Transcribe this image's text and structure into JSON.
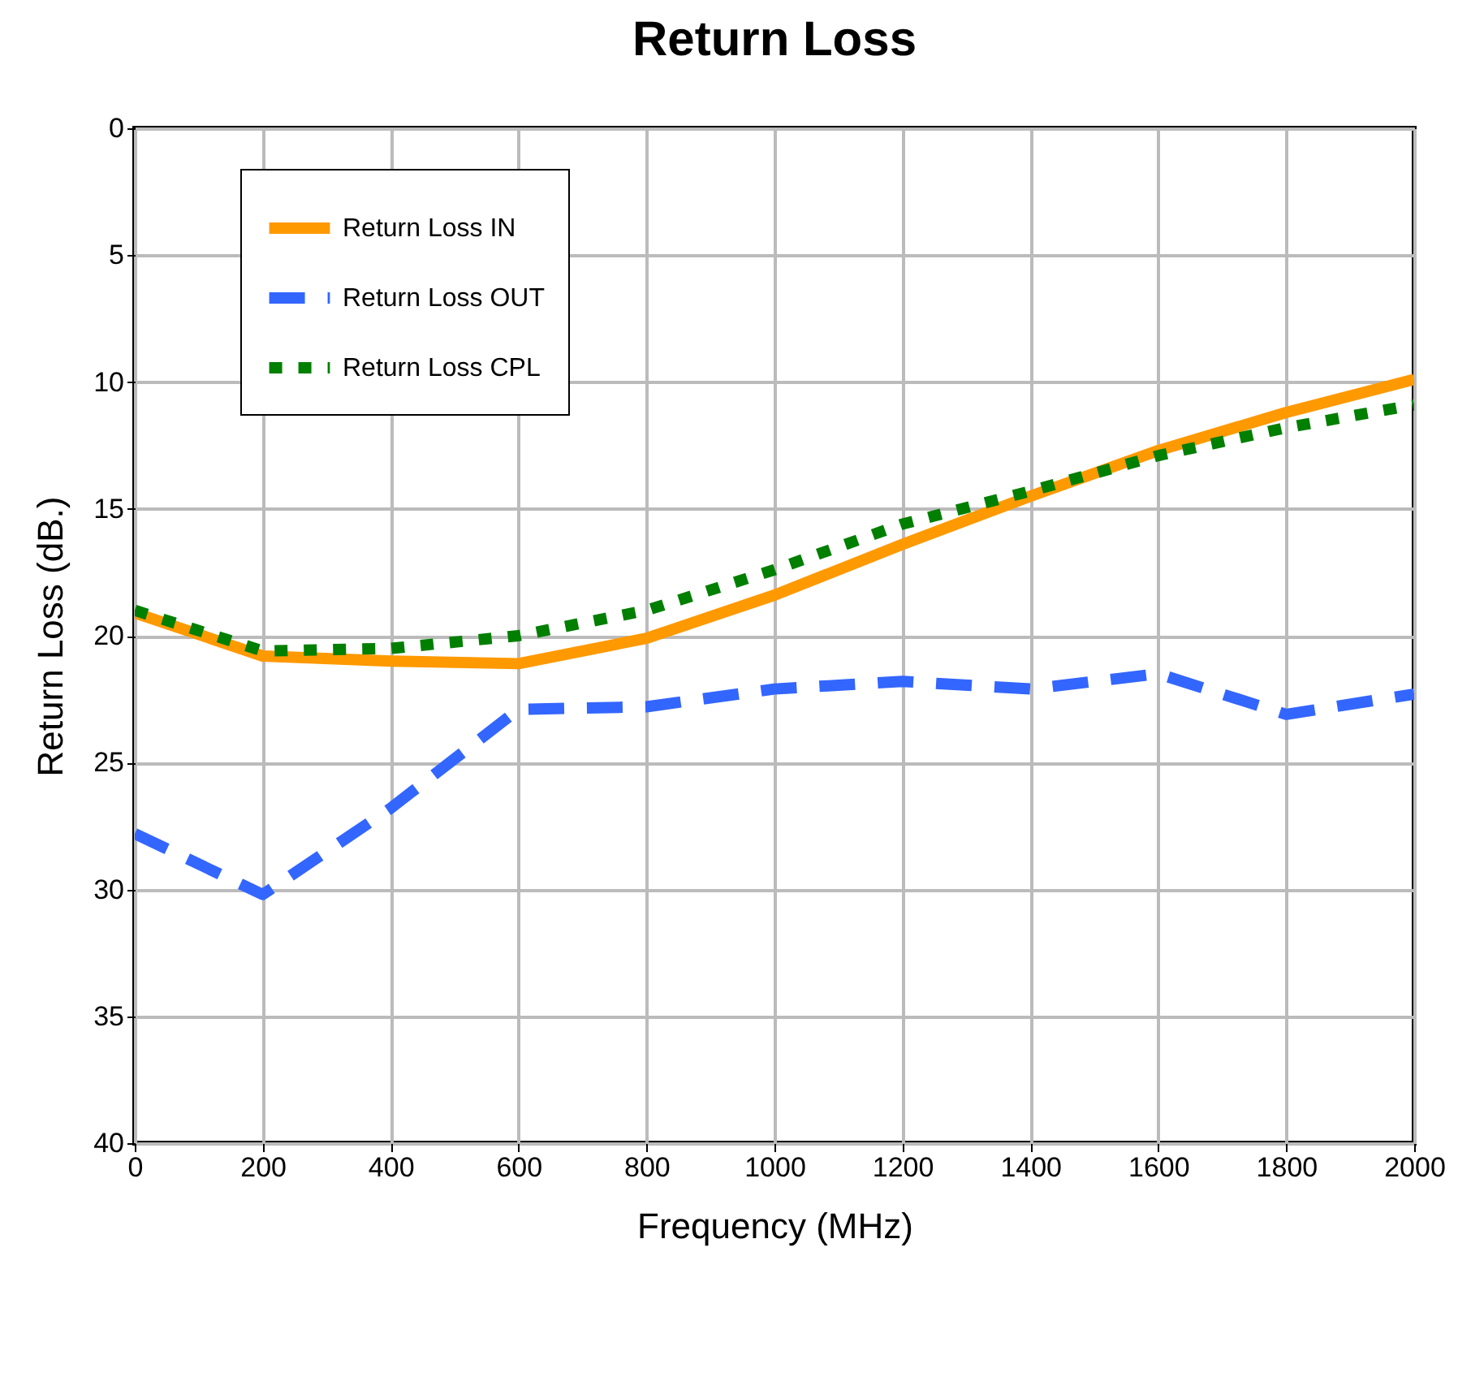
{
  "chart_data": {
    "type": "line",
    "title": "Return Loss",
    "xlabel": "Frequency (MHz)",
    "ylabel": "Return Loss (dB.)",
    "x": [
      0,
      200,
      400,
      600,
      800,
      1000,
      1200,
      1400,
      1600,
      1800,
      2000
    ],
    "series": [
      {
        "name": "Return Loss IN",
        "color": "#ff9900",
        "line_style": "solid",
        "values": [
          19.1,
          20.8,
          21,
          21.1,
          20.1,
          18.4,
          16.4,
          14.5,
          12.7,
          11.2,
          9.9
        ]
      },
      {
        "name": "Return Loss OUT",
        "color": "#3366ff",
        "line_style": "dashed",
        "values": [
          27.8,
          30.2,
          26.8,
          22.9,
          22.8,
          22.1,
          21.8,
          22.1,
          21.5,
          23.1,
          22.3
        ]
      },
      {
        "name": "Return Loss CPL",
        "color": "#007f00",
        "line_style": "dotted",
        "values": [
          19,
          20.6,
          20.5,
          20,
          19,
          17.4,
          15.6,
          14.3,
          12.9,
          11.8,
          10.9
        ]
      }
    ],
    "xlim": [
      0,
      2000
    ],
    "xticks": [
      0,
      200,
      400,
      600,
      800,
      1000,
      1200,
      1400,
      1600,
      1800,
      2000
    ],
    "ylim": [
      40,
      0
    ],
    "yticks": [
      0,
      5,
      10,
      15,
      20,
      25,
      30,
      35,
      40
    ],
    "grid": true,
    "legend": "top left"
  }
}
